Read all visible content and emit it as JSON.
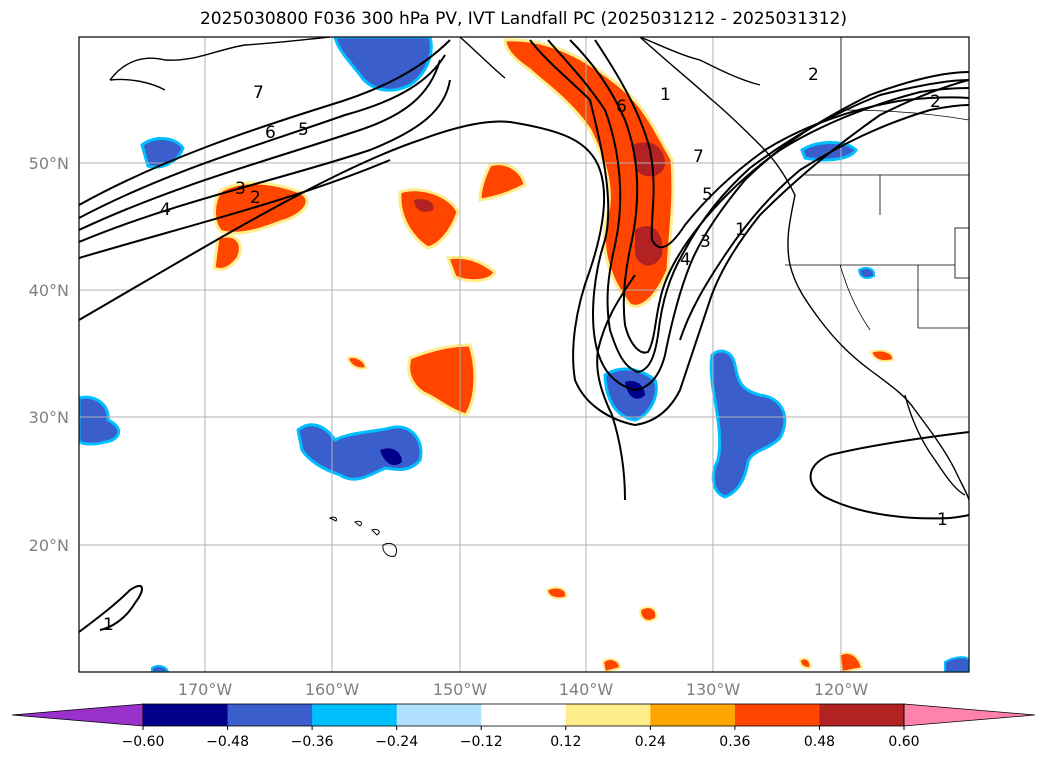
{
  "title": "2025030800 F036 300 hPa PV, IVT Landfall PC (2025031212 - 2025031312)",
  "map": {
    "latitude_labels": [
      "50°N",
      "40°N",
      "30°N",
      "20°N"
    ],
    "longitude_labels": [
      "170°W",
      "160°W",
      "150°W",
      "140°W",
      "130°W",
      "120°W"
    ],
    "contour_labels": [
      "7",
      "6",
      "5",
      "4",
      "3",
      "2",
      "1",
      "2",
      "7",
      "6",
      "5",
      "4",
      "3",
      "1",
      "2",
      "1",
      "1"
    ],
    "grid": true,
    "features": [
      "coastline",
      "us-state-borders",
      "lat-lon-grid",
      "pv-contours",
      "ivt-pc-shading"
    ]
  },
  "colorbar": {
    "ticks": [
      "−0.60",
      "−0.48",
      "−0.36",
      "−0.24",
      "−0.12",
      "0.12",
      "0.24",
      "0.36",
      "0.48",
      "0.60"
    ],
    "colors": [
      "#9932CC",
      "#00008B",
      "#3A5FCD",
      "#00BFFF",
      "#B0E2FF",
      "#FFFFFF",
      "#FFEC8B",
      "#FFA500",
      "#FF4500",
      "#B22222",
      "#FF82AB"
    ]
  },
  "colors": {
    "grid": "#b0b0b0",
    "contour": "#000000"
  }
}
